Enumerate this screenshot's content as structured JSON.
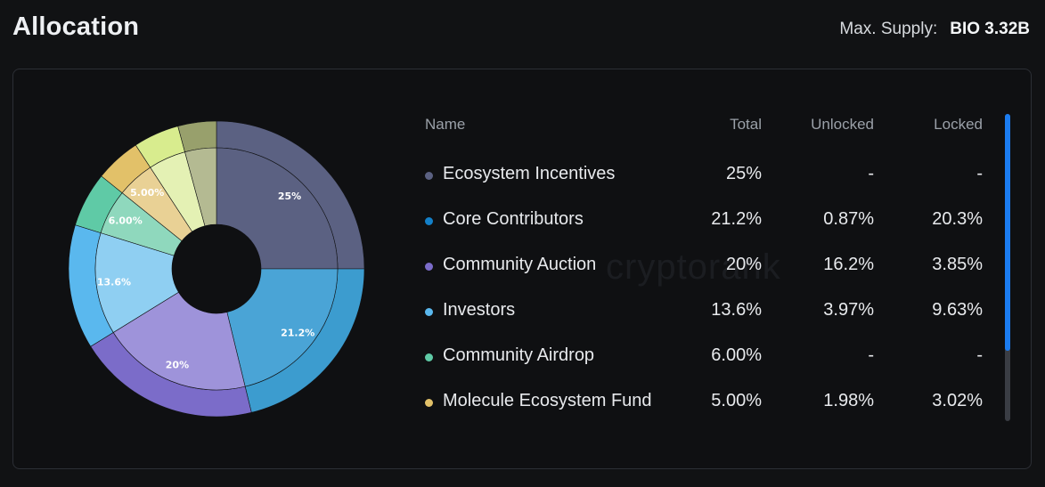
{
  "header": {
    "title": "Allocation",
    "supply_label": "Max. Supply:",
    "supply_value": "BIO 3.32B"
  },
  "watermark": "cryptorank",
  "table": {
    "headers": {
      "name": "Name",
      "total": "Total",
      "unlocked": "Unlocked",
      "locked": "Locked"
    },
    "rows": [
      {
        "name": "Ecosystem Incentives",
        "total": "25%",
        "unlocked": "-",
        "locked": "-",
        "color": "#5b6182"
      },
      {
        "name": "Core Contributors",
        "total": "21.2%",
        "unlocked": "0.87%",
        "locked": "20.3%",
        "color": "#1380c8"
      },
      {
        "name": "Community Auction",
        "total": "20%",
        "unlocked": "16.2%",
        "locked": "3.85%",
        "color": "#7b6cc9"
      },
      {
        "name": "Investors",
        "total": "13.6%",
        "unlocked": "3.97%",
        "locked": "9.63%",
        "color": "#5ab8ee"
      },
      {
        "name": "Community Airdrop",
        "total": "6.00%",
        "unlocked": "-",
        "locked": "-",
        "color": "#5fcaa6"
      },
      {
        "name": "Molecule Ecosystem Fund",
        "total": "5.00%",
        "unlocked": "1.98%",
        "locked": "3.02%",
        "color": "#e2c169"
      }
    ]
  },
  "chart_data": {
    "type": "pie",
    "slices": [
      {
        "value": 25,
        "label": "25%",
        "outer": "#5b6182",
        "inner": "#5b6182"
      },
      {
        "value": 21.2,
        "label": "21.2%",
        "outer": "#3c9ccf",
        "inner": "#4aa4d6"
      },
      {
        "value": 20,
        "label": "20%",
        "outer": "#7b6cc9",
        "inner": "#9e93da"
      },
      {
        "value": 13.6,
        "label": "13.6%",
        "outer": "#5ab8ee",
        "inner": "#8fcff2"
      },
      {
        "value": 6,
        "label": "6.00%",
        "outer": "#5fcaa6",
        "inner": "#8fd8bd"
      },
      {
        "value": 5,
        "label": "5.00%",
        "outer": "#e2c169",
        "inner": "#e9d195"
      },
      {
        "value": 5,
        "label": "",
        "outer": "#d8ec8e",
        "inner": "#e4f1b4"
      },
      {
        "value": 4.2,
        "label": "",
        "outer": "#98a06c",
        "inner": "#b4ba92"
      }
    ]
  },
  "scrollbar": {
    "position": 0,
    "visible_fraction": 0.77
  }
}
